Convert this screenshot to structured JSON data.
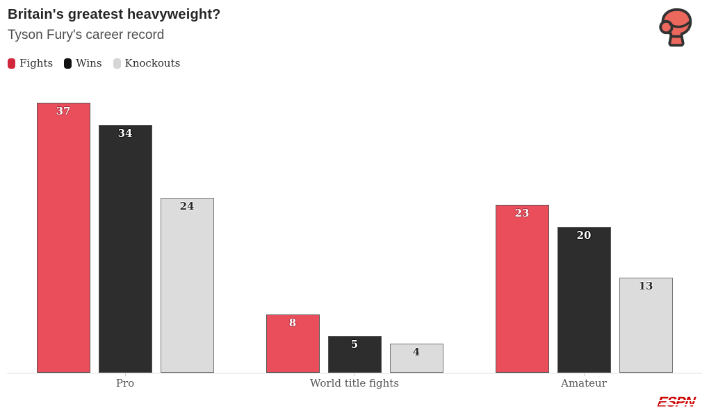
{
  "header": {
    "title": "Britain's greatest heavyweight?",
    "subtitle": "Tyson Fury's career record"
  },
  "chart_data": {
    "type": "bar",
    "title": "Britain's greatest heavyweight?",
    "subtitle": "Tyson Fury's career record",
    "categories": [
      "Pro",
      "World title fights",
      "Amateur"
    ],
    "series": [
      {
        "name": "Fights",
        "color": "#ea4e5b",
        "legend_swatch": "#d2263a",
        "values": [
          37,
          8,
          23
        ]
      },
      {
        "name": "Wins",
        "color": "#2d2d2d",
        "legend_swatch": "#111111",
        "values": [
          34,
          5,
          20
        ]
      },
      {
        "name": "Knockouts",
        "color": "#dcdcdc",
        "legend_swatch": "#d6d6d6",
        "values": [
          24,
          4,
          13
        ]
      }
    ],
    "xlabel": "",
    "ylabel": "",
    "ylim": [
      0,
      37
    ],
    "grid": false,
    "legend_position": "top-left",
    "value_labels": true
  },
  "icons": {
    "top_right": "boxing-glove-icon",
    "glove_fill": "#ec685d",
    "glove_stroke": "#323232"
  },
  "footer": {
    "brand": "ESPN",
    "brand_color": "#cc0000"
  }
}
